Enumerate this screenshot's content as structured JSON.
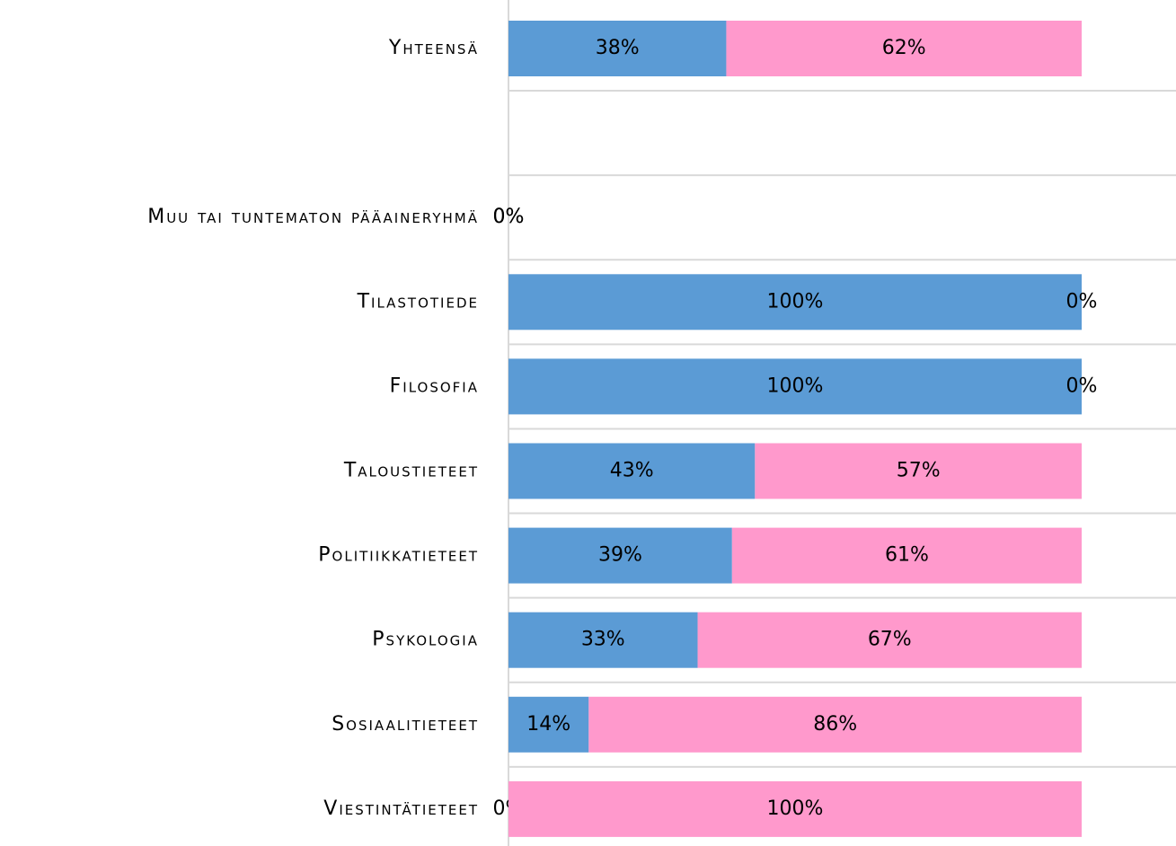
{
  "chart_data": {
    "type": "stacked_barh",
    "categories": [
      "Yhteensä",
      null,
      "Muu tai tuntematon pääaineryhmä",
      "Tilastotiede",
      "Filosofia",
      "Taloustieteet",
      "Politiikkatieteet",
      "Psykologia",
      "Sosiaalitieteet",
      "Viestintätieteet"
    ],
    "xlim": [
      0,
      100
    ],
    "series": [
      {
        "color": "#5b9bd5",
        "values": [
          38,
          null,
          0,
          100,
          100,
          43,
          39,
          33,
          14,
          0
        ],
        "value_labels": [
          "38%",
          null,
          "0%",
          "100%",
          "100%",
          "43%",
          "39%",
          "33%",
          "14%",
          "0%"
        ]
      },
      {
        "color": "#ff99cc",
        "values": [
          62,
          null,
          0,
          0,
          0,
          57,
          61,
          67,
          86,
          100
        ],
        "value_labels": [
          "62%",
          null,
          "0%",
          "0%",
          "0%",
          "57%",
          "61%",
          "67%",
          "86%",
          "100%"
        ]
      }
    ]
  }
}
